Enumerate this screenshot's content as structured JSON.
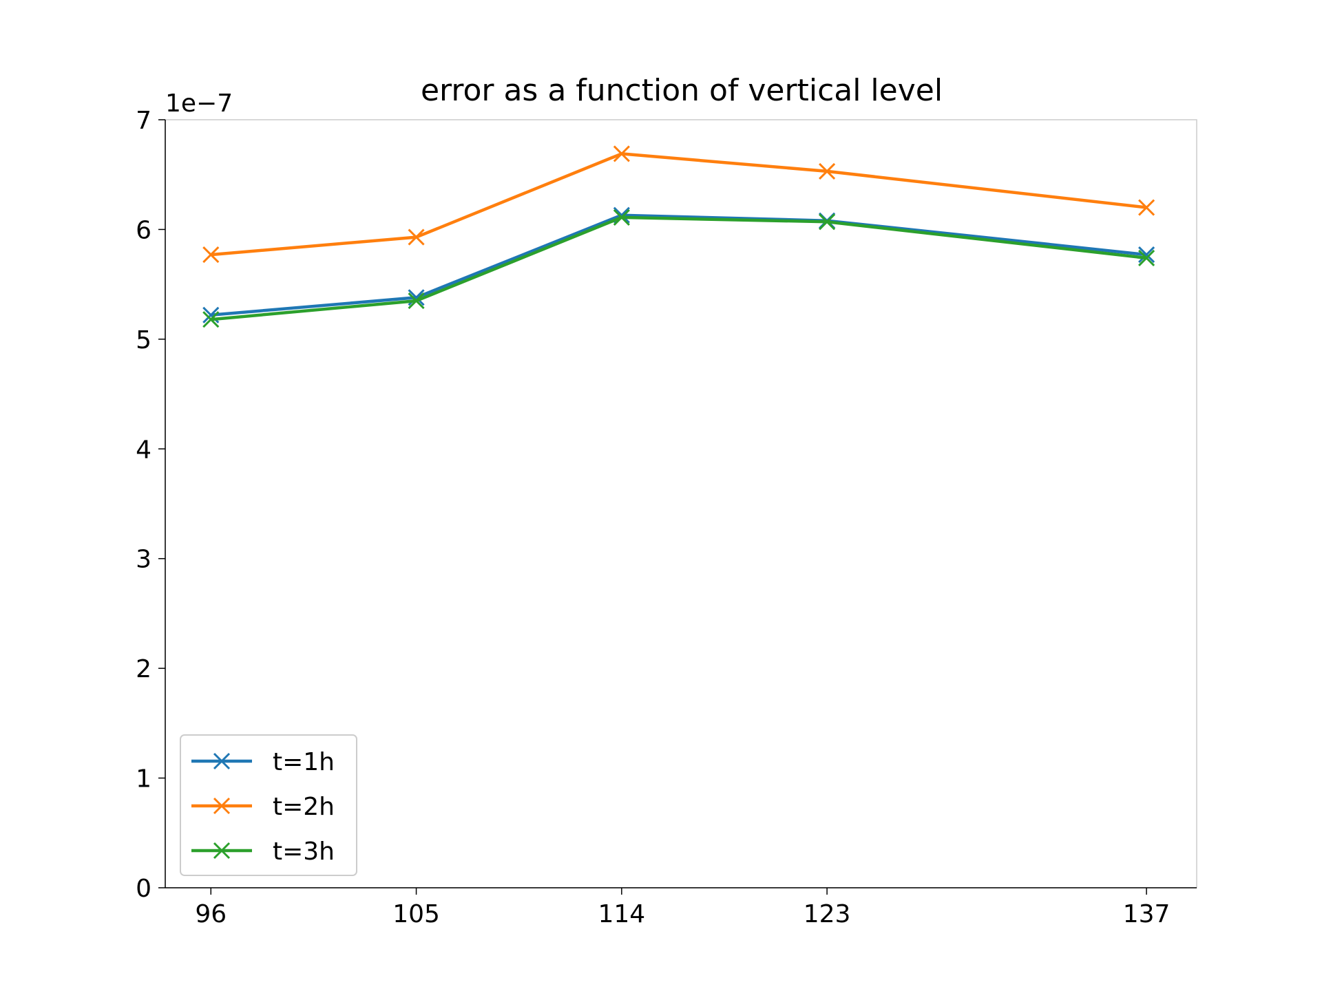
{
  "chart_data": {
    "type": "line",
    "title": "error as a function of vertical level",
    "xlabel": "",
    "ylabel": "",
    "x": [
      96,
      105,
      114,
      123,
      137
    ],
    "x_tick_labels": [
      "96",
      "105",
      "114",
      "123",
      "137"
    ],
    "xlim": [
      94,
      139.2
    ],
    "ylim": [
      0,
      7
    ],
    "y_ticks": [
      0,
      1,
      2,
      3,
      4,
      5,
      6,
      7
    ],
    "y_tick_labels": [
      "0",
      "1",
      "2",
      "3",
      "4",
      "5",
      "6",
      "7"
    ],
    "y_offset_text": "1e−7",
    "grid": false,
    "legend_position": "lower-left",
    "marker": "x",
    "series": [
      {
        "name": "t=1h",
        "color": "#1f77b4",
        "values": [
          5.22,
          5.38,
          6.13,
          6.08,
          5.77
        ]
      },
      {
        "name": "t=2h",
        "color": "#ff7f0e",
        "values": [
          5.77,
          5.93,
          6.69,
          6.53,
          6.2
        ]
      },
      {
        "name": "t=3h",
        "color": "#2ca02c",
        "values": [
          5.18,
          5.35,
          6.11,
          6.07,
          5.74
        ]
      }
    ]
  }
}
